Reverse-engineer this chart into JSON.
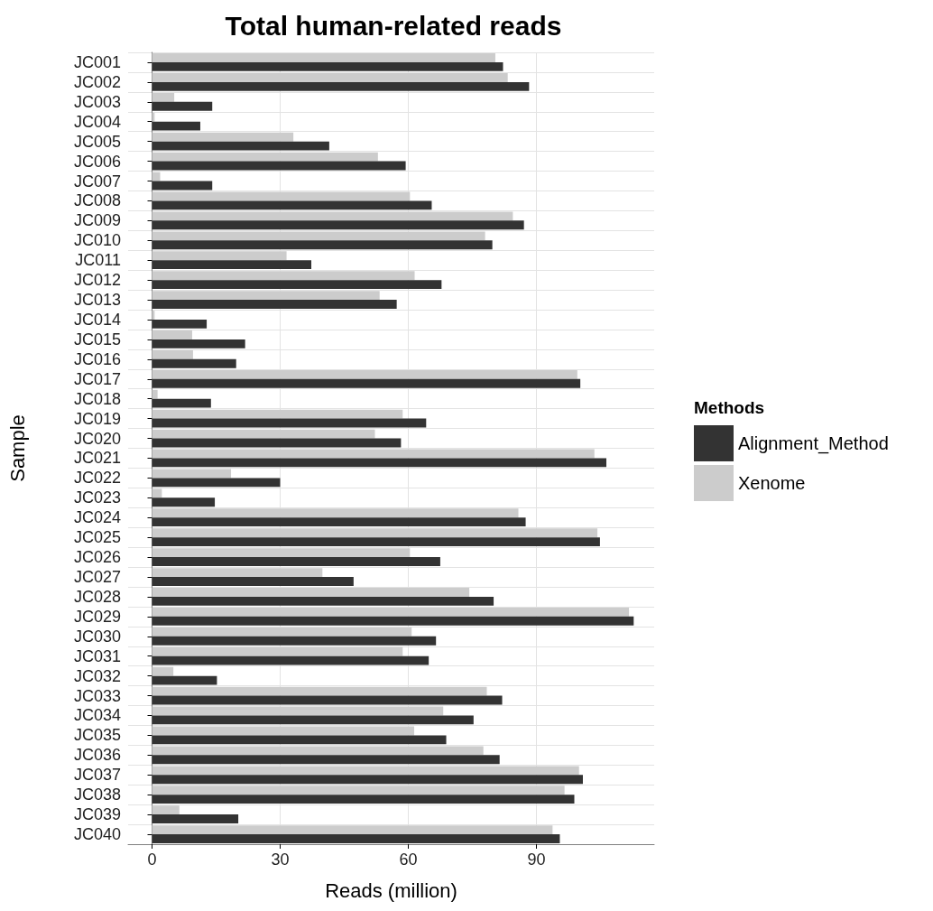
{
  "chart_data": {
    "type": "bar",
    "orientation": "horizontal",
    "title": "Total human-related reads",
    "xlabel": "Reads (million)",
    "ylabel": "Sample",
    "legend_title": "Methods",
    "categories": [
      "JC001",
      "JC002",
      "JC003",
      "JC004",
      "JC005",
      "JC006",
      "JC007",
      "JC008",
      "JC009",
      "JC010",
      "JC011",
      "JC012",
      "JC013",
      "JC014",
      "JC015",
      "JC016",
      "JC017",
      "JC018",
      "JC019",
      "JC020",
      "JC021",
      "JC022",
      "JC023",
      "JC024",
      "JC025",
      "JC026",
      "JC027",
      "JC028",
      "JC029",
      "JC030",
      "JC031",
      "JC032",
      "JC033",
      "JC034",
      "JC035",
      "JC036",
      "JC037",
      "JC038",
      "JC039",
      "JC040"
    ],
    "series": [
      {
        "name": "Alignment_Method",
        "color": "#333333",
        "values": [
          82.2,
          88.3,
          14.1,
          11.3,
          41.5,
          59.4,
          14.1,
          65.5,
          87.1,
          79.7,
          37.3,
          67.8,
          57.3,
          12.8,
          21.8,
          19.7,
          100.3,
          13.8,
          64.2,
          58.3,
          106.4,
          30.0,
          14.7,
          87.5,
          104.9,
          67.5,
          47.2,
          80.0,
          112.8,
          66.5,
          64.8,
          15.2,
          82.0,
          75.3,
          68.9,
          81.4,
          100.9,
          98.9,
          20.2,
          95.5
        ]
      },
      {
        "name": "Xenome",
        "color": "#cccccc",
        "values": [
          80.4,
          83.3,
          5.2,
          0.6,
          33.1,
          52.9,
          1.9,
          60.4,
          84.5,
          78.0,
          31.5,
          61.5,
          53.3,
          0.6,
          9.4,
          9.6,
          99.6,
          1.3,
          58.7,
          52.2,
          103.6,
          18.5,
          2.3,
          85.8,
          104.3,
          60.4,
          39.9,
          74.3,
          111.7,
          60.8,
          58.7,
          5.0,
          78.4,
          68.2,
          61.4,
          77.6,
          100.0,
          96.6,
          6.4,
          93.8
        ]
      }
    ],
    "xlim": [
      -5.6,
      117.6
    ],
    "xticks": [
      0,
      30,
      60,
      90
    ],
    "grid": true,
    "legend": "right"
  }
}
